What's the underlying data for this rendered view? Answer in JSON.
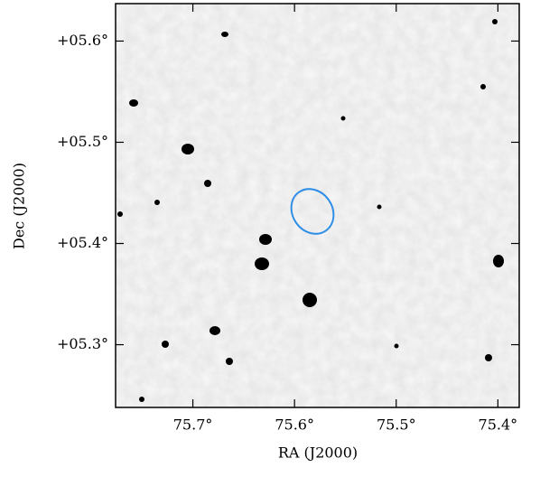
{
  "chart_data": {
    "type": "image",
    "x_label": "RA (J2000)",
    "y_label": "Dec (J2000)",
    "xlim": [
      75.776,
      75.379
    ],
    "ylim": [
      5.238,
      5.637
    ],
    "xticks": [
      {
        "value": 75.7,
        "label": "75.7°"
      },
      {
        "value": 75.6,
        "label": "75.6°"
      },
      {
        "value": 75.5,
        "label": "75.5°"
      },
      {
        "value": 75.4,
        "label": "75.4°"
      }
    ],
    "yticks": [
      {
        "value": 5.3,
        "label": "+05.3°"
      },
      {
        "value": 5.4,
        "label": "+05.4°"
      },
      {
        "value": 5.5,
        "label": "+05.5°"
      },
      {
        "value": 5.6,
        "label": "+05.6°"
      }
    ]
  }
}
